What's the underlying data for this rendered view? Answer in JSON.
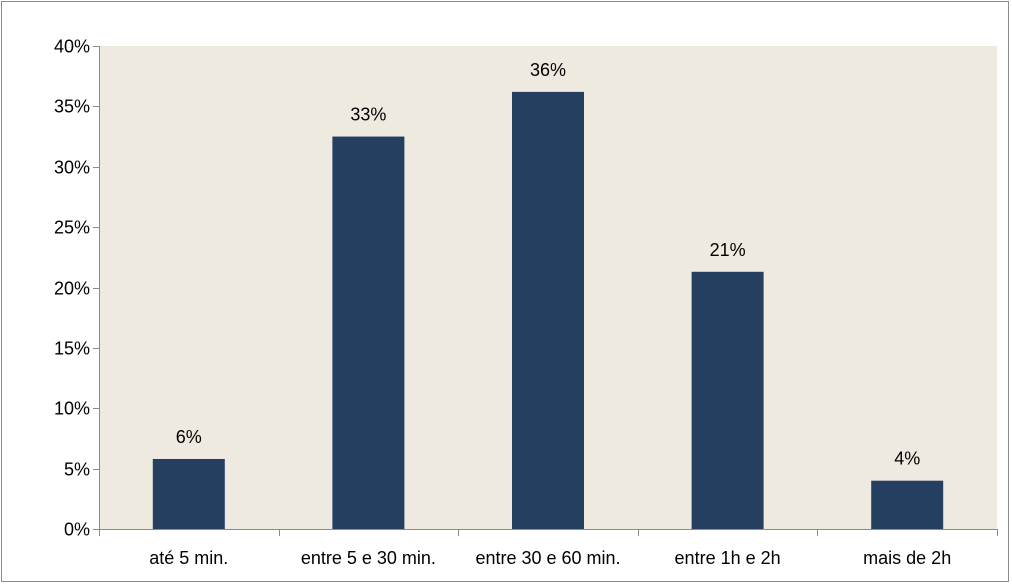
{
  "colors": {
    "plot_background": "#eeeae0",
    "bar": "#253f60",
    "axis": "#8c8c8c",
    "frame": "#8c8c8c",
    "text": "#000000"
  },
  "chart_data": {
    "type": "bar",
    "categories": [
      "até 5 min.",
      "entre 5 e 30 min.",
      "entre 30 e 60 min.",
      "entre 1h e 2h",
      "mais de 2h"
    ],
    "values": [
      5.8,
      32.5,
      36.2,
      21.3,
      4.0
    ],
    "data_labels": [
      "6%",
      "33%",
      "36%",
      "21%",
      "4%"
    ],
    "y_ticks": [
      0,
      5,
      10,
      15,
      20,
      25,
      30,
      35,
      40
    ],
    "y_tick_labels": [
      "0%",
      "5%",
      "10%",
      "15%",
      "20%",
      "25%",
      "30%",
      "35%",
      "40%"
    ],
    "ylim": [
      0,
      40
    ],
    "title": "",
    "xlabel": "",
    "ylabel": "",
    "grid": false,
    "legend": "none"
  }
}
